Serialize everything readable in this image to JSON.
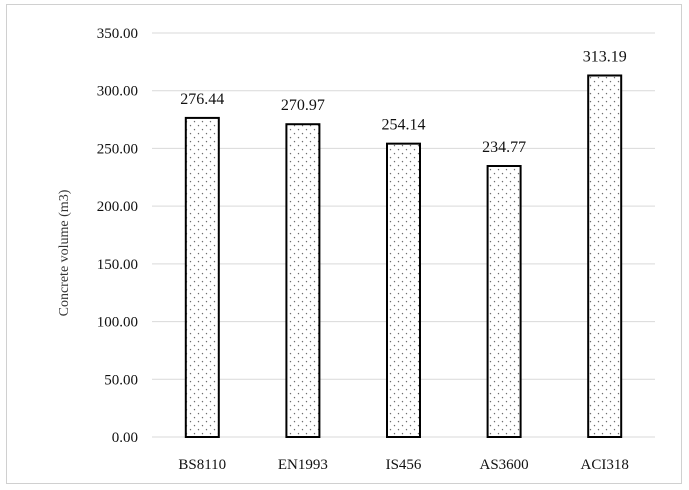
{
  "chart_data": {
    "type": "bar",
    "categories": [
      "BS8110",
      "EN1993",
      "IS456",
      "AS3600",
      "ACI318"
    ],
    "values": [
      276.44,
      270.97,
      254.14,
      234.77,
      313.19
    ],
    "value_labels": [
      "276.44",
      "270.97",
      "254.14",
      "234.77",
      "313.19"
    ],
    "xlabel": "",
    "ylabel": "Concrete volume (m3)",
    "ylim": [
      0,
      350
    ],
    "yticks": [
      "0.00",
      "50.00",
      "100.00",
      "150.00",
      "200.00",
      "250.00",
      "300.00",
      "350.00"
    ],
    "grid": true,
    "legend": "none",
    "bar_fill": "dotted pattern",
    "colors": {
      "bar_edge": "#000000",
      "pattern_dot": "#555555",
      "grid": "#d9d9d9"
    }
  }
}
